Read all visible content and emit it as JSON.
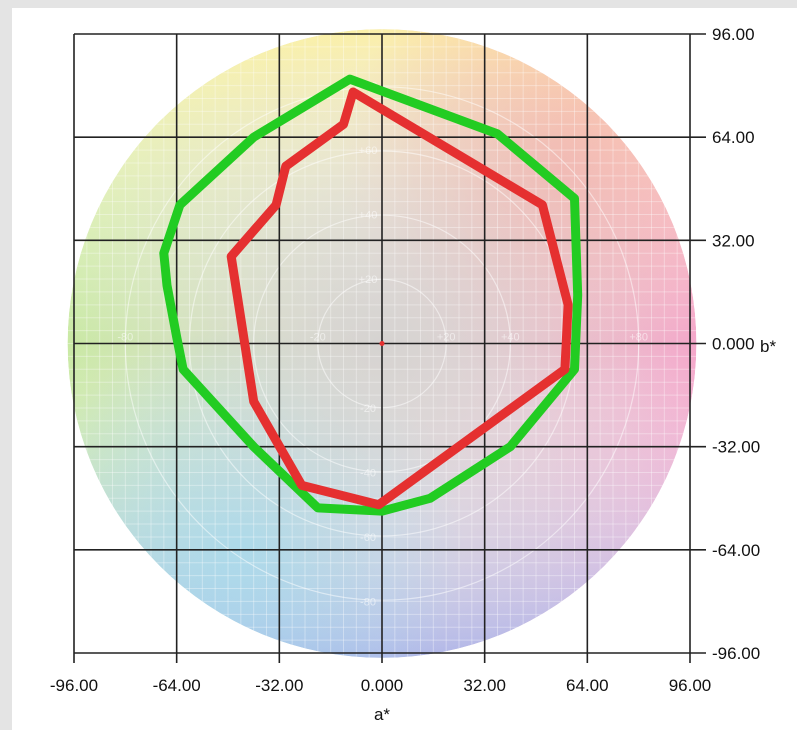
{
  "chart_data": {
    "type": "line",
    "subtype": "radar-polygon on CIELAB a*b* color wheel",
    "title": "",
    "xlabel": "a*",
    "ylabel": "b*",
    "xlim": [
      -96,
      96
    ],
    "ylim": [
      -96,
      96
    ],
    "grid": true,
    "x_ticks": [
      "-96.00",
      "-64.00",
      "-32.00",
      "0.000",
      "32.00",
      "64.00",
      "96.00"
    ],
    "y_ticks": [
      "96.00",
      "64.00",
      "32.00",
      "0.000",
      "-32.00",
      "-64.00",
      "-96.00"
    ],
    "y_tick_values": [
      96,
      64,
      32,
      0,
      -32,
      -64,
      -96
    ],
    "x_tick_values": [
      -96,
      -64,
      -32,
      0,
      32,
      64,
      96
    ],
    "wheel_labels": {
      "a_axis": [
        "-80",
        "-20",
        "+20",
        "+40",
        "+80"
      ],
      "a_axis_values": [
        -80,
        -20,
        20,
        40,
        80
      ],
      "b_axis": [
        "+80",
        "+60",
        "+40",
        "+20",
        "-20",
        "-40",
        "-60",
        "-80"
      ],
      "b_axis_values": [
        80,
        60,
        40,
        20,
        -20,
        -40,
        -60,
        -80
      ]
    },
    "series": [
      {
        "color": "#22cc22",
        "points": [
          [
            -10,
            82
          ],
          [
            36,
            65
          ],
          [
            60,
            45
          ],
          [
            61,
            15
          ],
          [
            60,
            -8
          ],
          [
            40,
            -32
          ],
          [
            15,
            -48
          ],
          [
            0,
            -52
          ],
          [
            -20,
            -51
          ],
          [
            -40,
            -32
          ],
          [
            -62,
            -8
          ],
          [
            -64,
            2
          ],
          [
            -67,
            18
          ],
          [
            -68,
            28
          ],
          [
            -63,
            43
          ],
          [
            -40,
            64
          ]
        ]
      },
      {
        "color": "#e53030",
        "points": [
          [
            -9,
            78
          ],
          [
            -12,
            68
          ],
          [
            -30,
            55
          ],
          [
            -33,
            43
          ],
          [
            -47,
            27
          ],
          [
            -40,
            -18
          ],
          [
            -25,
            -44
          ],
          [
            -1,
            -50
          ],
          [
            57,
            -8
          ],
          [
            58,
            12
          ],
          [
            50,
            43
          ]
        ]
      }
    ]
  }
}
